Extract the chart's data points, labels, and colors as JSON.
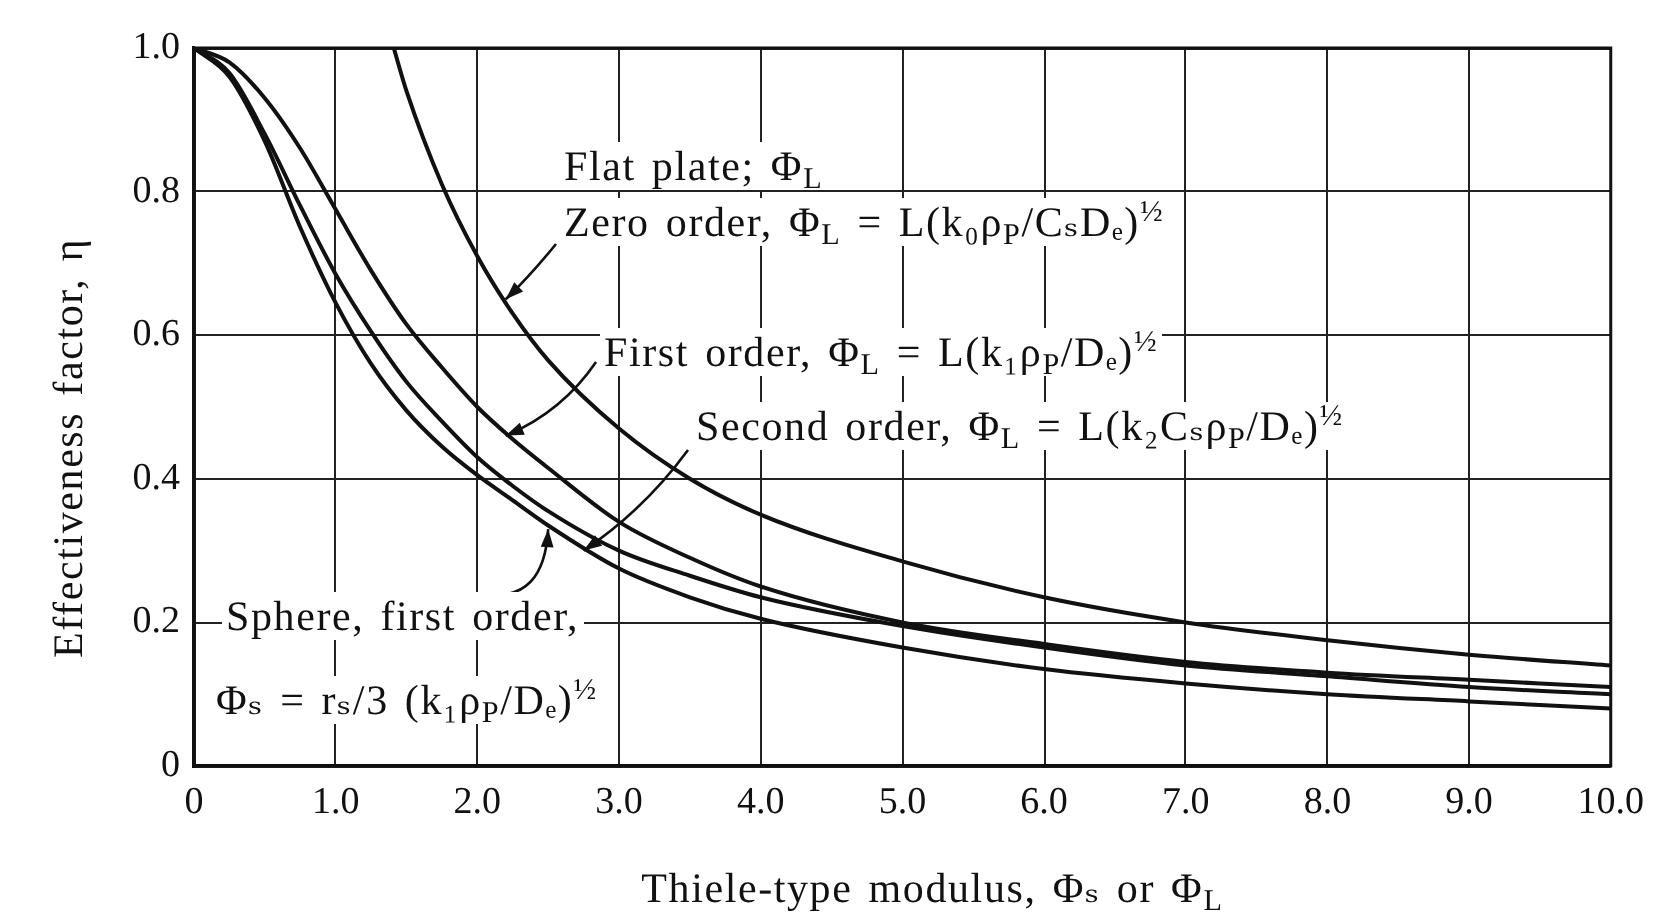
{
  "chart_data": {
    "type": "line",
    "xlabel": "Thiele-type modulus, Φₛ or Φ$_{L}$",
    "ylabel": "Effectiveness factor, η",
    "xlim": [
      0,
      10
    ],
    "xticks": [
      0,
      {
        "value": 1,
        "label": "1.0"
      },
      {
        "value": 2,
        "label": "2.0"
      },
      {
        "value": 3,
        "label": "3.0"
      },
      {
        "value": 4,
        "label": "4.0"
      },
      {
        "value": 5,
        "label": "5.0"
      },
      {
        "value": 6,
        "label": "6.0"
      },
      {
        "value": 7,
        "label": "7.0"
      },
      {
        "value": 8,
        "label": "8.0"
      },
      {
        "value": 9,
        "label": "9.0"
      },
      {
        "value": 10,
        "label": "10.0"
      }
    ],
    "ylim": [
      0,
      1
    ],
    "yticks": [
      0,
      0.2,
      0.4,
      0.6,
      0.8,
      {
        "value": 1,
        "label": "1.0"
      }
    ],
    "grid": true,
    "marker": "none",
    "line_style": "solid",
    "series": [
      {
        "color": "#111111",
        "x": [
          1.41,
          1.5,
          1.75,
          2,
          2.25,
          2.5,
          3,
          3.5,
          4,
          5,
          6,
          7,
          8,
          9,
          10
        ],
        "values": [
          1.0,
          0.94,
          0.81,
          0.71,
          0.63,
          0.565,
          0.47,
          0.4,
          0.35,
          0.285,
          0.235,
          0.2,
          0.175,
          0.155,
          0.14
        ]
      },
      {
        "color": "#111111",
        "x": [
          0,
          0.25,
          0.5,
          0.75,
          1,
          1.25,
          1.5,
          1.75,
          2,
          2.25,
          2.5,
          3,
          3.5,
          4,
          5,
          6,
          7,
          8,
          9,
          10
        ],
        "values": [
          1.0,
          0.98,
          0.93,
          0.86,
          0.775,
          0.69,
          0.615,
          0.555,
          0.5,
          0.455,
          0.415,
          0.34,
          0.29,
          0.25,
          0.2,
          0.17,
          0.145,
          0.13,
          0.12,
          0.11
        ]
      },
      {
        "color": "#111111",
        "x": [
          0,
          0.25,
          0.5,
          0.75,
          1,
          1.25,
          1.5,
          1.75,
          2,
          2.25,
          2.5,
          3,
          3.5,
          4,
          5,
          6,
          7,
          8,
          9,
          10
        ],
        "values": [
          1.0,
          0.96,
          0.87,
          0.75,
          0.645,
          0.56,
          0.495,
          0.445,
          0.405,
          0.37,
          0.335,
          0.275,
          0.235,
          0.205,
          0.165,
          0.135,
          0.115,
          0.1,
          0.09,
          0.08
        ]
      },
      {
        "color": "#111111",
        "x": [
          0,
          0.25,
          0.5,
          0.75,
          1,
          1.25,
          1.5,
          1.75,
          2,
          2.25,
          2.5,
          3,
          3.5,
          4,
          5,
          6,
          7,
          8,
          9,
          10
        ],
        "values": [
          1.0,
          0.965,
          0.88,
          0.78,
          0.685,
          0.605,
          0.535,
          0.48,
          0.43,
          0.39,
          0.355,
          0.3,
          0.265,
          0.235,
          0.195,
          0.165,
          0.14,
          0.125,
          0.11,
          0.1
        ]
      }
    ],
    "annotations": [
      "Flat plate; Φ$_{L}$",
      {
        "text": "Zero order, Φ$_{L}$ = L(k₀ρ$_{P}$/CₛDₑ)$^{½}$",
        "x": 2.2,
        "y": 0.65
      },
      {
        "text": "First order, Φ$_{L}$ = L(k₁ρ$_{P}$/Dₑ)$^{½}$",
        "x": 2.2,
        "y": 0.46
      },
      {
        "text": "Second order, Φ$_{L}$ = L(k₂Cₛρ$_{P}$/Dₑ)$^{½}$",
        "x": 2.75,
        "y": 0.3
      },
      {
        "text": "Sphere, first order,",
        "x": 2.5,
        "y": 0.33
      },
      "Φₛ = rₛ/3 (k₁ρ$_{P}$/Dₑ)$^{½}$"
    ]
  }
}
